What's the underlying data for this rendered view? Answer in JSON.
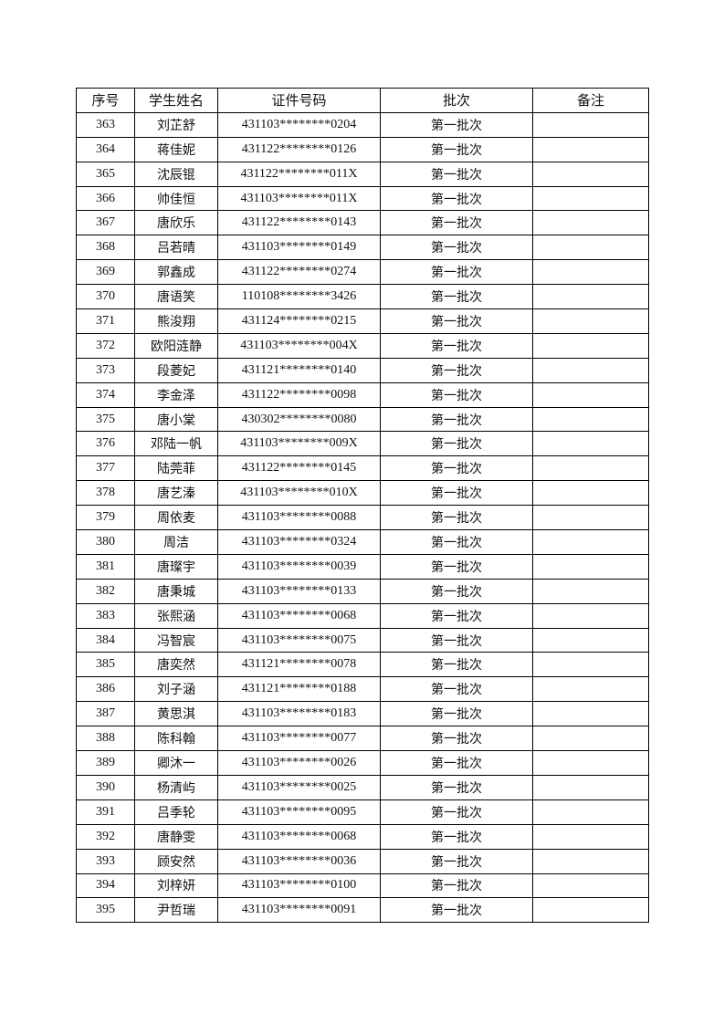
{
  "table": {
    "header": [
      "序号",
      "学生姓名",
      "证件号码",
      "批次",
      "备注"
    ],
    "rows": [
      [
        363,
        "刘芷舒",
        "431103********0204",
        "第一批次"
      ],
      [
        364,
        "蒋佳妮",
        "431122********0126",
        "第一批次"
      ],
      [
        365,
        "沈辰锟",
        "431122********011X",
        "第一批次"
      ],
      [
        366,
        "帅佳恒",
        "431103********011X",
        "第一批次"
      ],
      [
        367,
        "唐欣乐",
        "431122********0143",
        "第一批次"
      ],
      [
        368,
        "吕若晴",
        "431103********0149",
        "第一批次"
      ],
      [
        369,
        "郭鑫成",
        "431122********0274",
        "第一批次"
      ],
      [
        370,
        "唐语笑",
        "110108********3426",
        "第一批次"
      ],
      [
        371,
        "熊浚翔",
        "431124********0215",
        "第一批次"
      ],
      [
        372,
        "欧阳涟静",
        "431103********004X",
        "第一批次"
      ],
      [
        373,
        "段菱妃",
        "431121********0140",
        "第一批次"
      ],
      [
        374,
        "李金泽",
        "431122********0098",
        "第一批次"
      ],
      [
        375,
        "唐小棠",
        "430302********0080",
        "第一批次"
      ],
      [
        376,
        "邓陆一帆",
        "431103********009X",
        "第一批次"
      ],
      [
        377,
        "陆莞菲",
        "431122********0145",
        "第一批次"
      ],
      [
        378,
        "唐艺溱",
        "431103********010X",
        "第一批次"
      ],
      [
        379,
        "周依麦",
        "431103********0088",
        "第一批次"
      ],
      [
        380,
        "周洁",
        "431103********0324",
        "第一批次"
      ],
      [
        381,
        "唐璨宇",
        "431103********0039",
        "第一批次"
      ],
      [
        382,
        "唐秉城",
        "431103********0133",
        "第一批次"
      ],
      [
        383,
        "张熙涵",
        "431103********0068",
        "第一批次"
      ],
      [
        384,
        "冯智宸",
        "431103********0075",
        "第一批次"
      ],
      [
        385,
        "唐奕然",
        "431121********0078",
        "第一批次"
      ],
      [
        386,
        "刘子涵",
        "431121********0188",
        "第一批次"
      ],
      [
        387,
        "黄思淇",
        "431103********0183",
        "第一批次"
      ],
      [
        388,
        "陈科翰",
        "431103********0077",
        "第一批次"
      ],
      [
        389,
        "卿沐一",
        "431103********0026",
        "第一批次"
      ],
      [
        390,
        "杨清屿",
        "431103********0025",
        "第一批次"
      ],
      [
        391,
        "吕季轮",
        "431103********0095",
        "第一批次"
      ],
      [
        392,
        "唐静雯",
        "431103********0068",
        "第一批次"
      ],
      [
        393,
        "顾安然",
        "431103********0036",
        "第一批次"
      ],
      [
        394,
        "刘梓妍",
        "431103********0100",
        "第一批次"
      ],
      [
        395,
        "尹哲瑞",
        "431103********0091",
        "第一批次"
      ]
    ]
  }
}
